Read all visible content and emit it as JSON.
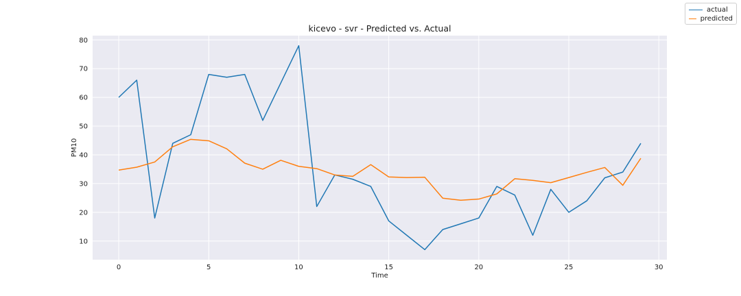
{
  "chart_data": {
    "type": "line",
    "title": "kicevo - svr - Predicted vs. Actual",
    "xlabel": "Time",
    "ylabel": "PM10",
    "xlim": [
      -1.45,
      30.45
    ],
    "ylim": [
      3.5,
      81.5
    ],
    "xticks": [
      0,
      5,
      10,
      15,
      20,
      25,
      30
    ],
    "yticks": [
      10,
      20,
      30,
      40,
      50,
      60,
      70,
      80
    ],
    "grid": true,
    "legend": "top-right",
    "x": [
      0,
      1,
      2,
      3,
      4,
      5,
      6,
      7,
      8,
      9,
      10,
      11,
      12,
      13,
      14,
      15,
      16,
      17,
      18,
      19,
      20,
      21,
      22,
      23,
      24,
      25,
      26,
      27,
      28,
      29
    ],
    "series": [
      {
        "name": "actual",
        "color": "#1f77b4",
        "values": [
          60,
          66,
          18,
          44,
          47,
          68,
          67,
          68,
          52,
          65,
          78,
          22,
          33,
          31.5,
          29,
          17,
          12,
          7,
          14,
          16,
          18,
          29,
          26,
          12,
          28,
          20,
          24,
          32,
          34,
          44
        ]
      },
      {
        "name": "predicted",
        "color": "#ff7f0e",
        "values": [
          34.7,
          35.7,
          37.5,
          42.8,
          45.4,
          44.9,
          42.1,
          37.1,
          35.0,
          38.1,
          36.0,
          35.2,
          33.0,
          32.5,
          36.6,
          32.3,
          32.1,
          32.2,
          24.9,
          24.2,
          24.6,
          26.4,
          31.7,
          31.1,
          30.3,
          32.1,
          33.9,
          35.6,
          29.4,
          38.8
        ]
      }
    ]
  }
}
